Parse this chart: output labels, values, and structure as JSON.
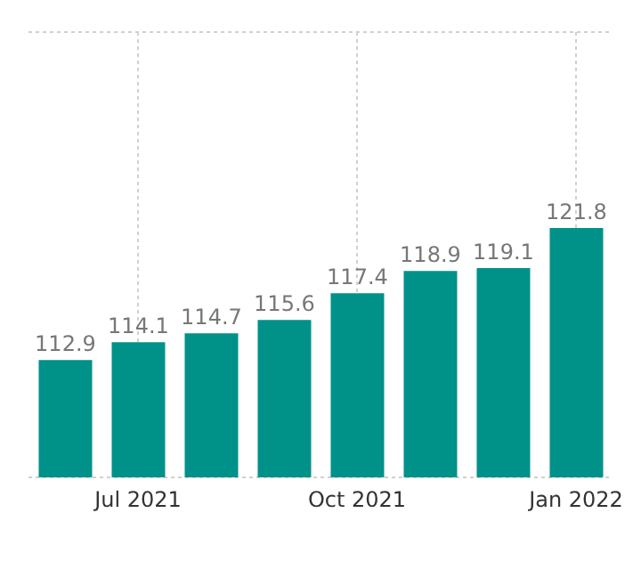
{
  "chart_data": {
    "type": "bar",
    "categories": [
      null,
      "Jul 2021",
      null,
      null,
      "Oct 2021",
      null,
      null,
      "Jan 2022"
    ],
    "values": [
      112.9,
      114.1,
      114.7,
      115.6,
      117.4,
      118.9,
      119.1,
      121.8
    ],
    "color": "#009189",
    "ylim": [
      105,
      135
    ],
    "tick_labels": "x",
    "grid": true,
    "data_labels": true
  }
}
